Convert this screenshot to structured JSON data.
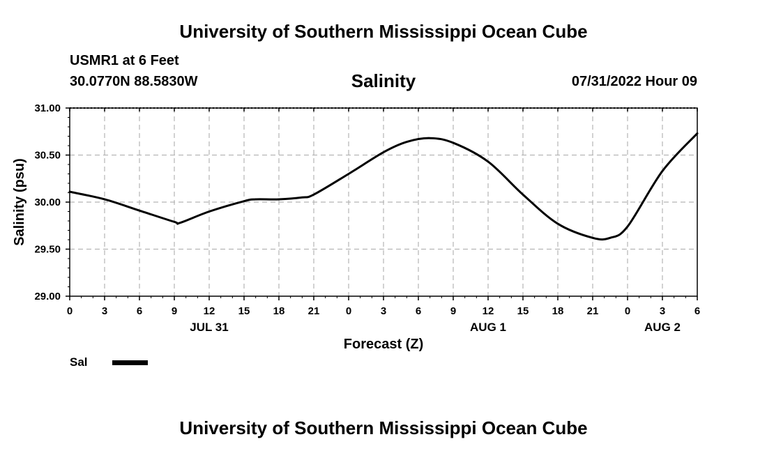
{
  "header": {
    "title": "University of Southern Mississippi Ocean Cube",
    "station": "USMR1 at 6 Feet",
    "coordinates": "30.0770N  88.5830W",
    "datetime": "07/31/2022 Hour 09"
  },
  "footer": {
    "title": "University of Southern Mississippi Ocean Cube"
  },
  "legend": {
    "label": "Sal",
    "color": "#000000"
  },
  "chart_data": {
    "type": "line",
    "title": "Salinity",
    "xlabel": "Forecast (Z)",
    "ylabel": "Salinity (psu)",
    "ylim": [
      29.0,
      31.0
    ],
    "yticks": [
      "29.00",
      "29.50",
      "30.00",
      "30.50",
      "31.00"
    ],
    "xlim": [
      0,
      54
    ],
    "xticks": [
      {
        "x": 0,
        "label": "0"
      },
      {
        "x": 3,
        "label": "3"
      },
      {
        "x": 6,
        "label": "6"
      },
      {
        "x": 9,
        "label": "9"
      },
      {
        "x": 12,
        "label": "12"
      },
      {
        "x": 15,
        "label": "15"
      },
      {
        "x": 18,
        "label": "18"
      },
      {
        "x": 21,
        "label": "21"
      },
      {
        "x": 24,
        "label": "0"
      },
      {
        "x": 27,
        "label": "3"
      },
      {
        "x": 30,
        "label": "6"
      },
      {
        "x": 33,
        "label": "9"
      },
      {
        "x": 36,
        "label": "12"
      },
      {
        "x": 39,
        "label": "15"
      },
      {
        "x": 42,
        "label": "18"
      },
      {
        "x": 45,
        "label": "21"
      },
      {
        "x": 48,
        "label": "0"
      },
      {
        "x": 51,
        "label": "3"
      },
      {
        "x": 54,
        "label": "6"
      }
    ],
    "date_labels": [
      {
        "x": 12,
        "label": "JUL 31"
      },
      {
        "x": 36,
        "label": "AUG 1"
      },
      {
        "x": 51,
        "label": "AUG 2"
      }
    ],
    "grid": true,
    "series": [
      {
        "name": "Sal",
        "color": "#000000",
        "x": [
          0,
          3,
          6,
          9,
          9.5,
          12,
          15,
          16,
          18,
          20,
          21,
          24,
          27,
          29,
          31,
          33,
          36,
          39,
          42,
          45,
          46.5,
          48,
          51,
          54
        ],
        "y": [
          30.11,
          30.03,
          29.91,
          29.79,
          29.78,
          29.9,
          30.01,
          30.03,
          30.03,
          30.05,
          30.08,
          30.3,
          30.53,
          30.64,
          30.68,
          30.63,
          30.43,
          30.08,
          29.77,
          29.62,
          29.62,
          29.74,
          30.33,
          30.73
        ]
      }
    ]
  }
}
